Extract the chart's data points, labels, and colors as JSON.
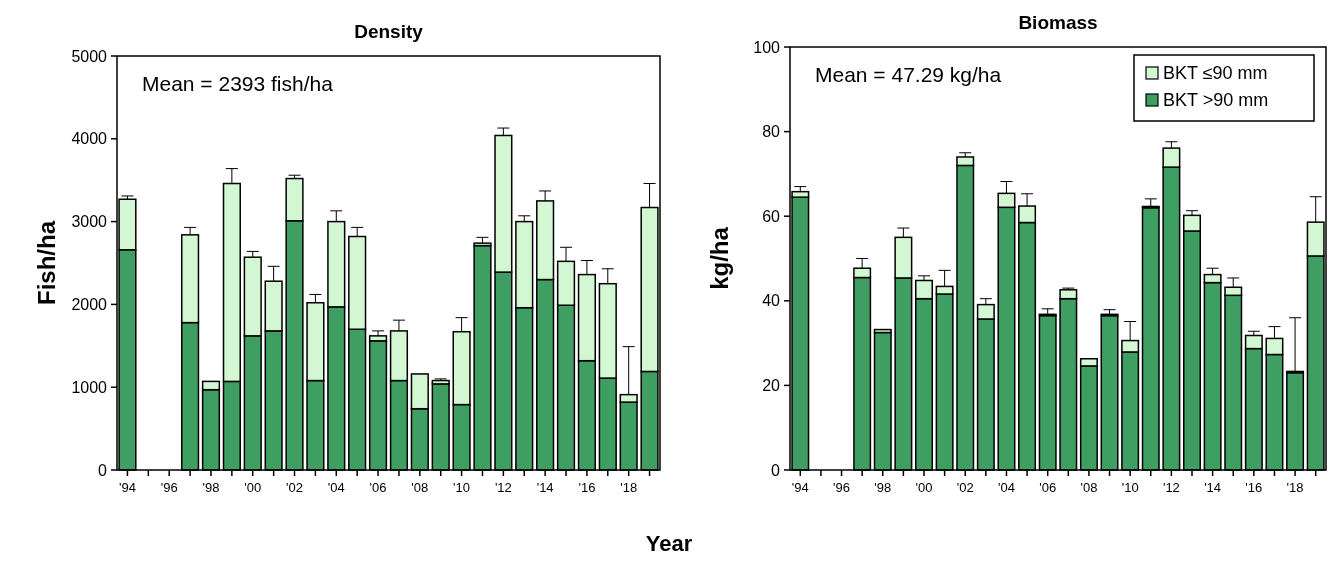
{
  "chart_data": [
    {
      "type": "bar",
      "title": "Density",
      "ylabel": "Fish/ha",
      "xlabel": "Year",
      "stacked": true,
      "grid": false,
      "legend": false,
      "categories": [
        "'94",
        null,
        "'96",
        null,
        "'98",
        null,
        "'00",
        null,
        "'02",
        null,
        "'04",
        null,
        "'06",
        null,
        "'08",
        null,
        "'10",
        null,
        "'12",
        null,
        "'14",
        null,
        "'16",
        null,
        "'18",
        null
      ],
      "ylim": [
        0,
        5000
      ],
      "yticks": [
        0,
        1000,
        2000,
        3000,
        4000,
        5000
      ],
      "annotations": [
        "Mean = 2393 fish/ha"
      ],
      "series": [
        {
          "color": "#3f9f62",
          "values": [
            2660,
            null,
            null,
            1780,
            970,
            1070,
            1620,
            1680,
            3010,
            1080,
            1970,
            1700,
            1560,
            1080,
            740,
            1040,
            790,
            2710,
            2390,
            1960,
            2300,
            1990,
            1320,
            1110,
            820,
            1190
          ]
        },
        {
          "color": "#d2f7d2",
          "values": [
            610,
            null,
            null,
            1060,
            100,
            2390,
            950,
            600,
            510,
            940,
            1030,
            1120,
            60,
            600,
            420,
            40,
            880,
            30,
            1650,
            1040,
            950,
            530,
            1040,
            1140,
            90,
            1980
          ],
          "errors": [
            [
              3270,
              3310
            ],
            null,
            null,
            [
              2840,
              2930
            ],
            null,
            [
              3460,
              3640
            ],
            [
              2570,
              2640
            ],
            [
              2280,
              2460
            ],
            [
              3520,
              3560
            ],
            [
              2020,
              2120
            ],
            [
              3000,
              3130
            ],
            [
              2820,
              2930
            ],
            [
              1620,
              1680
            ],
            [
              1680,
              1810
            ],
            null,
            [
              1080,
              1100
            ],
            [
              1670,
              1840
            ],
            [
              2740,
              2810
            ],
            [
              4040,
              4130
            ],
            [
              3000,
              3070
            ],
            [
              3250,
              3370
            ],
            [
              2520,
              2690
            ],
            [
              2360,
              2530
            ],
            [
              2250,
              2430
            ],
            [
              910,
              1490
            ],
            [
              3170,
              3460
            ]
          ]
        }
      ]
    },
    {
      "type": "bar",
      "title": "Biomass",
      "ylabel": "kg/ha",
      "stacked": true,
      "grid": false,
      "legend": "top right",
      "categories": [
        "'94",
        null,
        "'96",
        null,
        "'98",
        null,
        "'00",
        null,
        "'02",
        null,
        "'04",
        null,
        "'06",
        null,
        "'08",
        null,
        "'10",
        null,
        "'12",
        null,
        "'14",
        null,
        "'16",
        null,
        "'18",
        null
      ],
      "ylim": [
        0,
        100
      ],
      "yticks": [
        0,
        20,
        40,
        60,
        80,
        100
      ],
      "annotations": [
        "Mean = 47.29 kg/ha"
      ],
      "series": [
        {
          "name": "BKT >90 mm",
          "color": "#3f9f62",
          "values": [
            64.5,
            null,
            null,
            45.5,
            32.5,
            45.4,
            40.5,
            41.6,
            72,
            35.7,
            62.1,
            58.5,
            36.5,
            40.5,
            24.6,
            36.5,
            27.9,
            62,
            71.6,
            56.5,
            44.3,
            41.3,
            28.7,
            27.3,
            23,
            50.6
          ]
        },
        {
          "name": "BKT ≤90 mm",
          "color": "#d2f7d2",
          "values": [
            1.3,
            null,
            null,
            2.2,
            0.7,
            9.6,
            4.3,
            1.8,
            2,
            3.4,
            3.3,
            3.9,
            0.3,
            2.1,
            1.7,
            0.3,
            2.7,
            0.3,
            4.5,
            3.7,
            1.9,
            1.9,
            3.1,
            3.8,
            0.3,
            8
          ],
          "errors": [
            [
              65.8,
              67
            ],
            null,
            null,
            [
              47.7,
              50
            ],
            null,
            [
              55,
              57.2
            ],
            [
              44.8,
              45.9
            ],
            [
              43.4,
              47.2
            ],
            [
              74,
              75
            ],
            [
              39.1,
              40.5
            ],
            [
              65.4,
              68.2
            ],
            [
              62.4,
              65.3
            ],
            [
              36.8,
              38.1
            ],
            [
              42.6,
              43
            ],
            null,
            [
              36.8,
              37.9
            ],
            [
              30.6,
              35.1
            ],
            [
              62.3,
              64.1
            ],
            [
              76.1,
              77.6
            ],
            [
              60.2,
              61.3
            ],
            [
              46.2,
              47.7
            ],
            [
              43.2,
              45.4
            ],
            [
              31.8,
              32.8
            ],
            [
              31.1,
              33.9
            ],
            [
              23.3,
              36
            ],
            [
              58.6,
              64.6
            ]
          ]
        }
      ]
    }
  ]
}
